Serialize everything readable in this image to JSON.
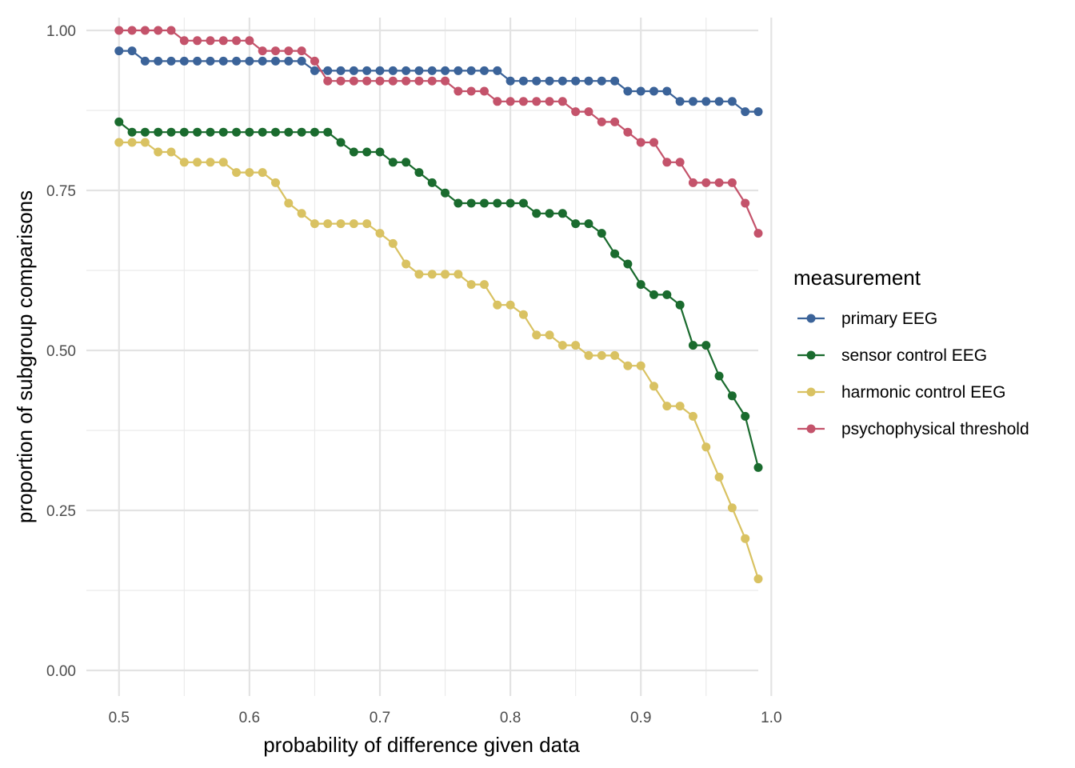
{
  "chart_data": {
    "type": "line",
    "title": "",
    "xlabel": "probability of difference given data",
    "ylabel": "proportion of subgroup comparisons",
    "xlim": [
      0.475,
      0.99
    ],
    "ylim": [
      -0.04,
      1.02
    ],
    "x_ticks": [
      {
        "value": 0.5,
        "label": "0.5"
      },
      {
        "value": 0.6,
        "label": "0.6"
      },
      {
        "value": 0.7,
        "label": "0.7"
      },
      {
        "value": 0.8,
        "label": "0.8"
      },
      {
        "value": 0.9,
        "label": "0.9"
      },
      {
        "value": 1.0,
        "label": "1.0"
      }
    ],
    "y_ticks": [
      {
        "value": 0.0,
        "label": "0.00"
      },
      {
        "value": 0.25,
        "label": "0.25"
      },
      {
        "value": 0.5,
        "label": "0.50"
      },
      {
        "value": 0.75,
        "label": "0.75"
      },
      {
        "value": 1.0,
        "label": "1.00"
      }
    ],
    "grid": true,
    "legend": {
      "title": "measurement",
      "position": "right"
    },
    "x": [
      0.5,
      0.51,
      0.52,
      0.53,
      0.54,
      0.55,
      0.56,
      0.57,
      0.58,
      0.59,
      0.6,
      0.61,
      0.62,
      0.63,
      0.64,
      0.65,
      0.66,
      0.67,
      0.68,
      0.69,
      0.7,
      0.71,
      0.72,
      0.73,
      0.74,
      0.75,
      0.76,
      0.77,
      0.78,
      0.79,
      0.8,
      0.81,
      0.82,
      0.83,
      0.84,
      0.85,
      0.86,
      0.87,
      0.88,
      0.89,
      0.9,
      0.91,
      0.92,
      0.93,
      0.94,
      0.95,
      0.96,
      0.97,
      0.98,
      0.99
    ],
    "series": [
      {
        "name": "primary EEG",
        "color": "#3b6399",
        "values": [
          0.968,
          0.968,
          0.952,
          0.952,
          0.952,
          0.952,
          0.952,
          0.952,
          0.952,
          0.952,
          0.952,
          0.952,
          0.952,
          0.952,
          0.952,
          0.937,
          0.937,
          0.937,
          0.937,
          0.937,
          0.937,
          0.937,
          0.937,
          0.937,
          0.937,
          0.937,
          0.937,
          0.937,
          0.937,
          0.937,
          0.921,
          0.921,
          0.921,
          0.921,
          0.921,
          0.921,
          0.921,
          0.921,
          0.921,
          0.905,
          0.905,
          0.905,
          0.905,
          0.889,
          0.889,
          0.889,
          0.889,
          0.889,
          0.873,
          0.873
        ]
      },
      {
        "name": "sensor control EEG",
        "color": "#1a6b2e",
        "values": [
          0.857,
          0.841,
          0.841,
          0.841,
          0.841,
          0.841,
          0.841,
          0.841,
          0.841,
          0.841,
          0.841,
          0.841,
          0.841,
          0.841,
          0.841,
          0.841,
          0.841,
          0.825,
          0.81,
          0.81,
          0.81,
          0.794,
          0.794,
          0.778,
          0.762,
          0.746,
          0.73,
          0.73,
          0.73,
          0.73,
          0.73,
          0.73,
          0.714,
          0.714,
          0.714,
          0.698,
          0.698,
          0.683,
          0.651,
          0.635,
          0.603,
          0.587,
          0.587,
          0.571,
          0.508,
          0.508,
          0.46,
          0.429,
          0.397,
          0.317
        ]
      },
      {
        "name": "harmonic control EEG",
        "color": "#d9c262",
        "values": [
          0.825,
          0.825,
          0.825,
          0.81,
          0.81,
          0.794,
          0.794,
          0.794,
          0.794,
          0.778,
          0.778,
          0.778,
          0.762,
          0.73,
          0.714,
          0.698,
          0.698,
          0.698,
          0.698,
          0.698,
          0.683,
          0.667,
          0.635,
          0.619,
          0.619,
          0.619,
          0.619,
          0.603,
          0.603,
          0.571,
          0.571,
          0.556,
          0.524,
          0.524,
          0.508,
          0.508,
          0.492,
          0.492,
          0.492,
          0.476,
          0.476,
          0.444,
          0.413,
          0.413,
          0.397,
          0.349,
          0.302,
          0.254,
          0.206,
          0.143
        ]
      },
      {
        "name": "psychophysical threshold",
        "color": "#c4536b",
        "values": [
          1.0,
          1.0,
          1.0,
          1.0,
          1.0,
          0.984,
          0.984,
          0.984,
          0.984,
          0.984,
          0.984,
          0.968,
          0.968,
          0.968,
          0.968,
          0.952,
          0.921,
          0.921,
          0.921,
          0.921,
          0.921,
          0.921,
          0.921,
          0.921,
          0.921,
          0.921,
          0.905,
          0.905,
          0.905,
          0.889,
          0.889,
          0.889,
          0.889,
          0.889,
          0.889,
          0.873,
          0.873,
          0.857,
          0.857,
          0.841,
          0.825,
          0.825,
          0.794,
          0.794,
          0.762,
          0.762,
          0.762,
          0.762,
          0.73,
          0.683
        ]
      }
    ]
  }
}
